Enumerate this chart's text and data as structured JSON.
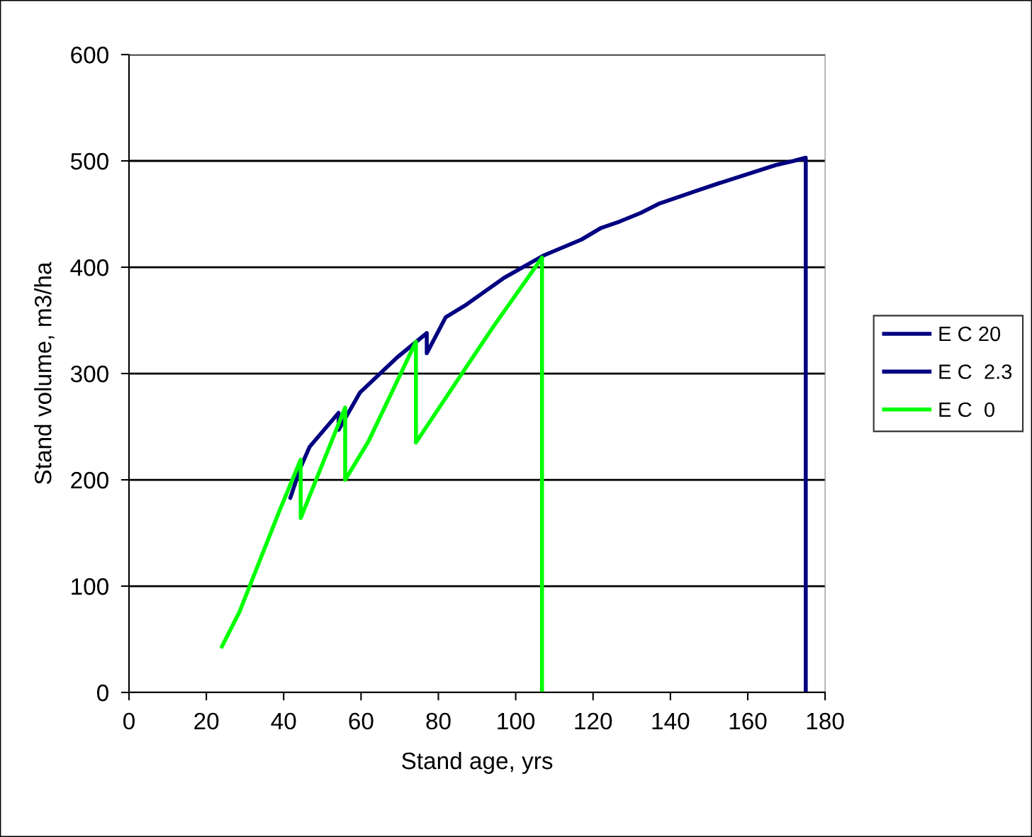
{
  "chart_data": {
    "type": "line",
    "xlabel": "Stand age, yrs",
    "ylabel": "Stand volume, m3/ha",
    "xlim": [
      0,
      180
    ],
    "xticks": [
      0,
      20,
      40,
      60,
      80,
      100,
      120,
      140,
      160,
      180
    ],
    "ylim": [
      0,
      600
    ],
    "yticks": [
      0,
      100,
      200,
      300,
      400,
      500,
      600
    ],
    "grid": "y",
    "legend": "right",
    "marker": "none",
    "line_style": "solid",
    "series": [
      {
        "name": "E C 20",
        "color": "#000080"
      },
      {
        "name": "E C  2.3",
        "color": "#000080",
        "x": [
          41.7,
          44.4,
          46.7,
          54.2,
          54.2,
          59.7,
          69.3,
          77.0,
          77.0,
          81.9,
          87.3,
          97.0,
          107.2,
          117.0,
          122.1,
          126.9,
          132.3,
          137.2,
          146.8,
          152.6,
          167.2,
          171.9,
          175.0,
          175.0
        ],
        "values": [
          183,
          212,
          231,
          263,
          247,
          282,
          315,
          338,
          319,
          353,
          365,
          390,
          411,
          426,
          437,
          443,
          451,
          460,
          472,
          479,
          496,
          500,
          503,
          0
        ]
      },
      {
        "name": "E C  0",
        "color": "#00ff00",
        "x": [
          24.0,
          28.6,
          38.7,
          44.4,
          44.4,
          55.9,
          55.9,
          61.9,
          74.2,
          74.2,
          86.1,
          94.2,
          106.8,
          106.8
        ],
        "values": [
          43,
          76,
          169,
          219,
          164,
          268,
          200,
          236,
          330,
          235,
          300,
          344,
          409,
          0
        ]
      }
    ]
  }
}
